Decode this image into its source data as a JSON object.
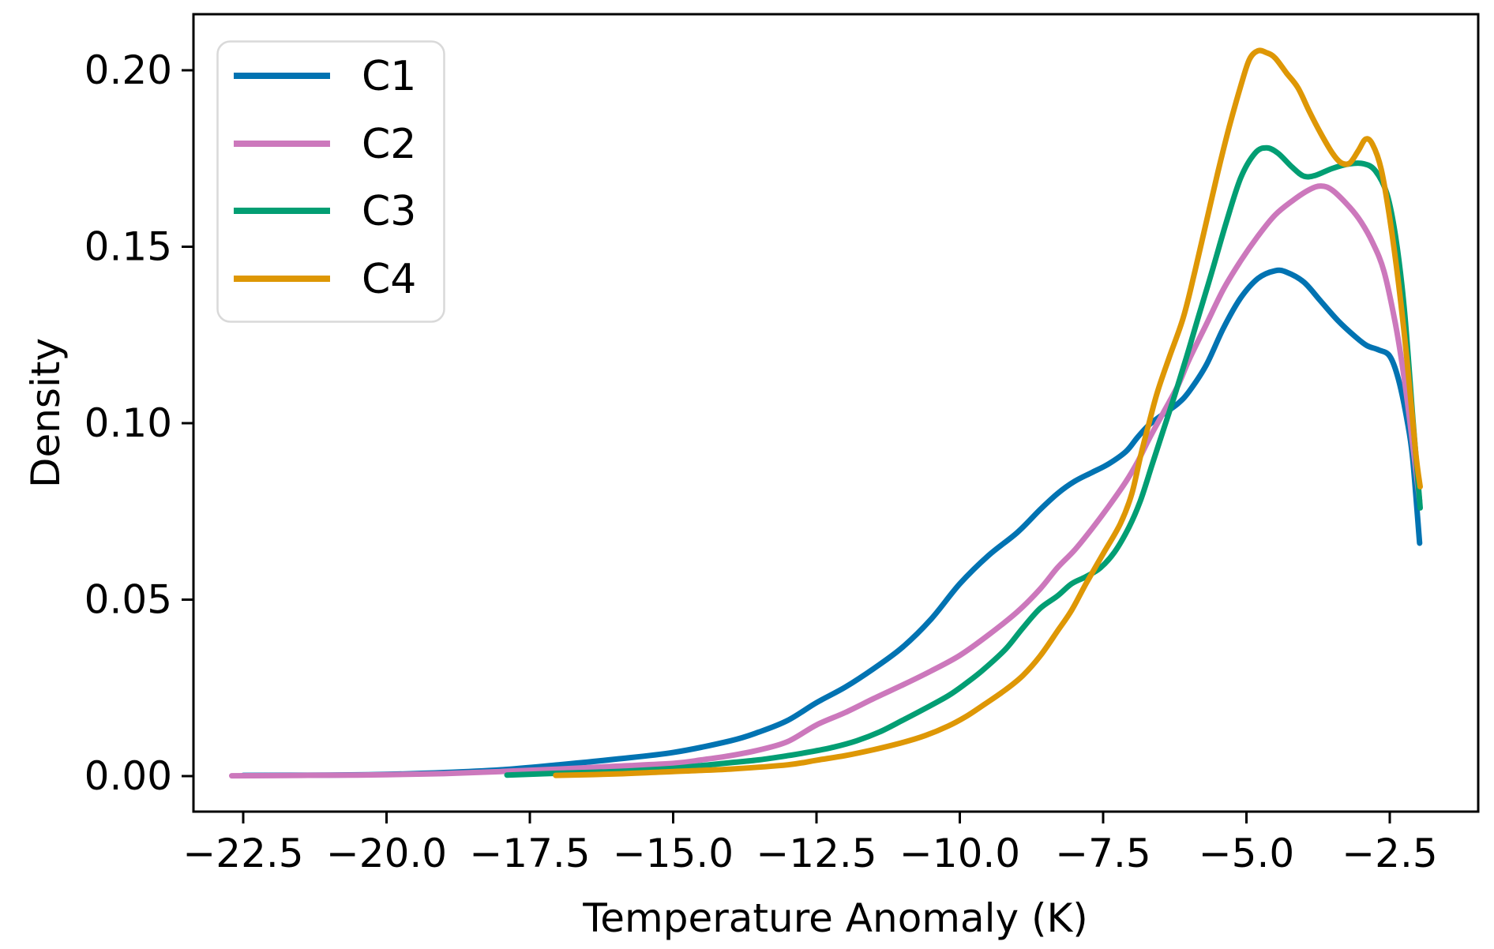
{
  "chart_data": {
    "type": "line",
    "subtype": "kde-density",
    "title": "",
    "xlabel": "Temperature Anomaly (K)",
    "ylabel": "Density",
    "x_ticks": [
      -22.5,
      -20.0,
      -17.5,
      -15.0,
      -12.5,
      -10.0,
      -7.5,
      -5.0,
      -2.5
    ],
    "x_tick_labels": [
      "−22.5",
      "−20.0",
      "−17.5",
      "−15.0",
      "−12.5",
      "−10.0",
      "−7.5",
      "−5.0",
      "−2.5"
    ],
    "y_ticks": [
      0.0,
      0.05,
      0.1,
      0.15,
      0.2
    ],
    "y_tick_labels": [
      "0.00",
      "0.05",
      "0.10",
      "0.15",
      "0.20"
    ],
    "xlim": [
      -23.37,
      -0.96
    ],
    "ylim": [
      -0.0101,
      0.2159
    ],
    "grid": false,
    "legend": {
      "position": "upper left",
      "entries": [
        "C1",
        "C2",
        "C3",
        "C4"
      ]
    },
    "series": [
      {
        "name": "C1",
        "color": "#0173b2",
        "points": [
          [
            -22.5,
            0.0002
          ],
          [
            -21,
            0.0003
          ],
          [
            -20,
            0.0005
          ],
          [
            -19,
            0.001
          ],
          [
            -18,
            0.0018
          ],
          [
            -17,
            0.0032
          ],
          [
            -16,
            0.0048
          ],
          [
            -15,
            0.0067
          ],
          [
            -14,
            0.01
          ],
          [
            -13.5,
            0.0125
          ],
          [
            -13,
            0.0158
          ],
          [
            -12.5,
            0.0208
          ],
          [
            -12,
            0.0252
          ],
          [
            -11.5,
            0.0305
          ],
          [
            -11,
            0.0365
          ],
          [
            -10.5,
            0.0445
          ],
          [
            -10,
            0.0545
          ],
          [
            -9.5,
            0.0625
          ],
          [
            -9,
            0.069
          ],
          [
            -8.6,
            0.0755
          ],
          [
            -8.3,
            0.08
          ],
          [
            -8,
            0.0835
          ],
          [
            -7.7,
            0.086
          ],
          [
            -7.4,
            0.0885
          ],
          [
            -7.1,
            0.092
          ],
          [
            -6.9,
            0.096
          ],
          [
            -6.7,
            0.0995
          ],
          [
            -6.5,
            0.102
          ],
          [
            -6.2,
            0.1055
          ],
          [
            -6,
            0.109
          ],
          [
            -5.7,
            0.1165
          ],
          [
            -5.4,
            0.127
          ],
          [
            -5.1,
            0.1355
          ],
          [
            -4.8,
            0.141
          ],
          [
            -4.5,
            0.1432
          ],
          [
            -4.3,
            0.1428
          ],
          [
            -4,
            0.14
          ],
          [
            -3.7,
            0.1345
          ],
          [
            -3.4,
            0.129
          ],
          [
            -3.1,
            0.1245
          ],
          [
            -2.9,
            0.122
          ],
          [
            -2.7,
            0.1208
          ],
          [
            -2.5,
            0.119
          ],
          [
            -2.35,
            0.1125
          ],
          [
            -2.2,
            0.101
          ],
          [
            -2.1,
            0.09
          ],
          [
            -1.98,
            0.066
          ]
        ]
      },
      {
        "name": "C2",
        "color": "#cc78bc",
        "points": [
          [
            -22.7,
            0.0001
          ],
          [
            -21.5,
            0.0002
          ],
          [
            -20.5,
            0.0003
          ],
          [
            -20,
            0.0004
          ],
          [
            -19,
            0.0007
          ],
          [
            -18,
            0.0013
          ],
          [
            -17,
            0.002
          ],
          [
            -16,
            0.0028
          ],
          [
            -15,
            0.0036
          ],
          [
            -14.5,
            0.0046
          ],
          [
            -14,
            0.0058
          ],
          [
            -13.5,
            0.0074
          ],
          [
            -13,
            0.0098
          ],
          [
            -12.5,
            0.0145
          ],
          [
            -12,
            0.018
          ],
          [
            -11.5,
            0.022
          ],
          [
            -11,
            0.0258
          ],
          [
            -10.5,
            0.0298
          ],
          [
            -10,
            0.0342
          ],
          [
            -9.5,
            0.04
          ],
          [
            -9,
            0.0465
          ],
          [
            -8.6,
            0.053
          ],
          [
            -8.3,
            0.059
          ],
          [
            -8,
            0.064
          ],
          [
            -7.7,
            0.07
          ],
          [
            -7.4,
            0.0765
          ],
          [
            -7.1,
            0.0835
          ],
          [
            -6.9,
            0.089
          ],
          [
            -6.7,
            0.0955
          ],
          [
            -6.5,
            0.1015
          ],
          [
            -6.2,
            0.1105
          ],
          [
            -6,
            0.118
          ],
          [
            -5.7,
            0.128
          ],
          [
            -5.4,
            0.138
          ],
          [
            -5.1,
            0.146
          ],
          [
            -4.8,
            0.153
          ],
          [
            -4.5,
            0.159
          ],
          [
            -4.2,
            0.163
          ],
          [
            -3.9,
            0.1662
          ],
          [
            -3.7,
            0.1672
          ],
          [
            -3.5,
            0.166
          ],
          [
            -3.2,
            0.1612
          ],
          [
            -3,
            0.157
          ],
          [
            -2.8,
            0.1512
          ],
          [
            -2.6,
            0.143
          ],
          [
            -2.4,
            0.128
          ],
          [
            -2.25,
            0.113
          ],
          [
            -2.1,
            0.094
          ],
          [
            -1.98,
            0.078
          ]
        ]
      },
      {
        "name": "C3",
        "color": "#029e73",
        "points": [
          [
            -17.9,
            0.0003
          ],
          [
            -17,
            0.0008
          ],
          [
            -16,
            0.0013
          ],
          [
            -15,
            0.0022
          ],
          [
            -14.5,
            0.003
          ],
          [
            -14,
            0.0038
          ],
          [
            -13.5,
            0.0046
          ],
          [
            -13,
            0.0058
          ],
          [
            -12.6,
            0.0069
          ],
          [
            -12.2,
            0.0082
          ],
          [
            -11.8,
            0.01
          ],
          [
            -11.4,
            0.0125
          ],
          [
            -11,
            0.0158
          ],
          [
            -10.6,
            0.0192
          ],
          [
            -10.2,
            0.0228
          ],
          [
            -9.9,
            0.0262
          ],
          [
            -9.6,
            0.03
          ],
          [
            -9.2,
            0.036
          ],
          [
            -8.9,
            0.042
          ],
          [
            -8.6,
            0.0475
          ],
          [
            -8.3,
            0.051
          ],
          [
            -8.05,
            0.0545
          ],
          [
            -7.8,
            0.0565
          ],
          [
            -7.55,
            0.059
          ],
          [
            -7.3,
            0.0635
          ],
          [
            -7.05,
            0.0705
          ],
          [
            -6.85,
            0.078
          ],
          [
            -6.65,
            0.088
          ],
          [
            -6.45,
            0.098
          ],
          [
            -6.25,
            0.108
          ],
          [
            -6.05,
            0.1185
          ],
          [
            -5.85,
            0.1295
          ],
          [
            -5.6,
            0.143
          ],
          [
            -5.35,
            0.157
          ],
          [
            -5.1,
            0.1695
          ],
          [
            -4.85,
            0.1765
          ],
          [
            -4.65,
            0.178
          ],
          [
            -4.45,
            0.1765
          ],
          [
            -4.2,
            0.1725
          ],
          [
            -4,
            0.17
          ],
          [
            -3.8,
            0.1702
          ],
          [
            -3.5,
            0.1722
          ],
          [
            -3.2,
            0.1735
          ],
          [
            -2.95,
            0.1735
          ],
          [
            -2.75,
            0.1715
          ],
          [
            -2.55,
            0.165
          ],
          [
            -2.4,
            0.153
          ],
          [
            -2.25,
            0.133
          ],
          [
            -2.1,
            0.102
          ],
          [
            -1.97,
            0.076
          ]
        ]
      },
      {
        "name": "C4",
        "color": "#de9705",
        "points": [
          [
            -17.05,
            0.0002
          ],
          [
            -16,
            0.0006
          ],
          [
            -15,
            0.0013
          ],
          [
            -14,
            0.002
          ],
          [
            -13,
            0.0032
          ],
          [
            -12.5,
            0.0045
          ],
          [
            -12,
            0.0058
          ],
          [
            -11.5,
            0.0075
          ],
          [
            -11,
            0.0095
          ],
          [
            -10.6,
            0.0115
          ],
          [
            -10.2,
            0.0142
          ],
          [
            -9.9,
            0.0168
          ],
          [
            -9.6,
            0.02
          ],
          [
            -9.2,
            0.0245
          ],
          [
            -8.9,
            0.0285
          ],
          [
            -8.6,
            0.034
          ],
          [
            -8.3,
            0.041
          ],
          [
            -8.05,
            0.047
          ],
          [
            -7.8,
            0.0545
          ],
          [
            -7.5,
            0.063
          ],
          [
            -7.2,
            0.0715
          ],
          [
            -7,
            0.08
          ],
          [
            -6.85,
            0.0905
          ],
          [
            -6.7,
            0.1
          ],
          [
            -6.55,
            0.109
          ],
          [
            -6.35,
            0.1185
          ],
          [
            -6.1,
            0.13
          ],
          [
            -5.9,
            0.143
          ],
          [
            -5.7,
            0.157
          ],
          [
            -5.5,
            0.171
          ],
          [
            -5.3,
            0.184
          ],
          [
            -5.1,
            0.1955
          ],
          [
            -4.95,
            0.203
          ],
          [
            -4.8,
            0.2055
          ],
          [
            -4.65,
            0.205
          ],
          [
            -4.5,
            0.2035
          ],
          [
            -4.3,
            0.1992
          ],
          [
            -4.1,
            0.195
          ],
          [
            -3.9,
            0.1882
          ],
          [
            -3.7,
            0.182
          ],
          [
            -3.5,
            0.1765
          ],
          [
            -3.35,
            0.1738
          ],
          [
            -3.2,
            0.1737
          ],
          [
            -3.05,
            0.1772
          ],
          [
            -2.92,
            0.1805
          ],
          [
            -2.8,
            0.179
          ],
          [
            -2.65,
            0.172
          ],
          [
            -2.5,
            0.158
          ],
          [
            -2.35,
            0.14
          ],
          [
            -2.2,
            0.118
          ],
          [
            -2.05,
            0.092
          ],
          [
            -1.97,
            0.082
          ]
        ]
      }
    ]
  }
}
